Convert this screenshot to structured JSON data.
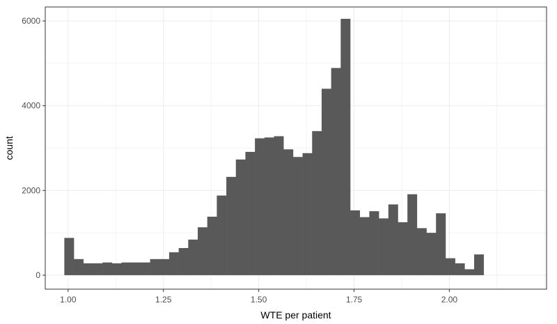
{
  "chart_data": {
    "type": "bar",
    "title": "",
    "xlabel": "WTE per patient",
    "ylabel": "count",
    "xlim": [
      0.94,
      2.255
    ],
    "ylim": [
      -330,
      6330
    ],
    "x_ticks": [
      1.0,
      1.25,
      1.5,
      1.75,
      2.0
    ],
    "x_tick_labels": [
      "1.00",
      "1.25",
      "1.50",
      "1.75",
      "2.00"
    ],
    "y_ticks": [
      0,
      2000,
      4000,
      6000
    ],
    "y_tick_labels": [
      "0",
      "2000",
      "4000",
      "6000"
    ],
    "grid": true,
    "bin_width": 0.025,
    "bin_start": 0.99,
    "values": [
      880,
      380,
      280,
      280,
      300,
      280,
      300,
      300,
      300,
      380,
      380,
      540,
      640,
      840,
      1130,
      1380,
      1880,
      2320,
      2730,
      2910,
      3230,
      3250,
      3280,
      2970,
      2790,
      2880,
      3400,
      4400,
      4890,
      6050,
      1530,
      1370,
      1510,
      1340,
      1670,
      1250,
      1910,
      1110,
      1000,
      1460,
      400,
      280,
      140,
      490
    ],
    "bar_color": "#595959",
    "grid_color": "#ebebeb",
    "panel_border_color": "#333333"
  }
}
